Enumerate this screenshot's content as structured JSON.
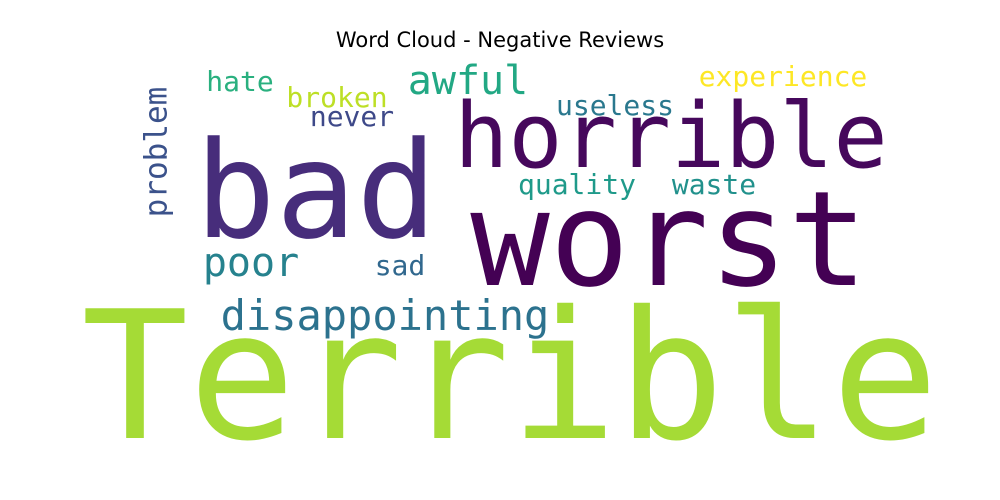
{
  "chart_data": {
    "type": "wordcloud",
    "title": "Word Cloud - Negative Reviews",
    "colormap": "viridis",
    "words": [
      {
        "text": "Terrible",
        "color": "#a5db36"
      },
      {
        "text": "worst",
        "color": "#440154"
      },
      {
        "text": "bad",
        "color": "#472d7b"
      },
      {
        "text": "horrible",
        "color": "#46085c"
      },
      {
        "text": "disappointing",
        "color": "#2c728e"
      },
      {
        "text": "awful",
        "color": "#22a884"
      },
      {
        "text": "poor",
        "color": "#26828e"
      },
      {
        "text": "problem",
        "color": "#3b528b"
      },
      {
        "text": "quality",
        "color": "#1f9a8a"
      },
      {
        "text": "waste",
        "color": "#21918c"
      },
      {
        "text": "hate",
        "color": "#2ab07f"
      },
      {
        "text": "broken",
        "color": "#bddf26"
      },
      {
        "text": "never",
        "color": "#3e4989"
      },
      {
        "text": "useless",
        "color": "#2a788e"
      },
      {
        "text": "experience",
        "color": "#fde725"
      },
      {
        "text": "sad",
        "color": "#31688e"
      }
    ]
  }
}
